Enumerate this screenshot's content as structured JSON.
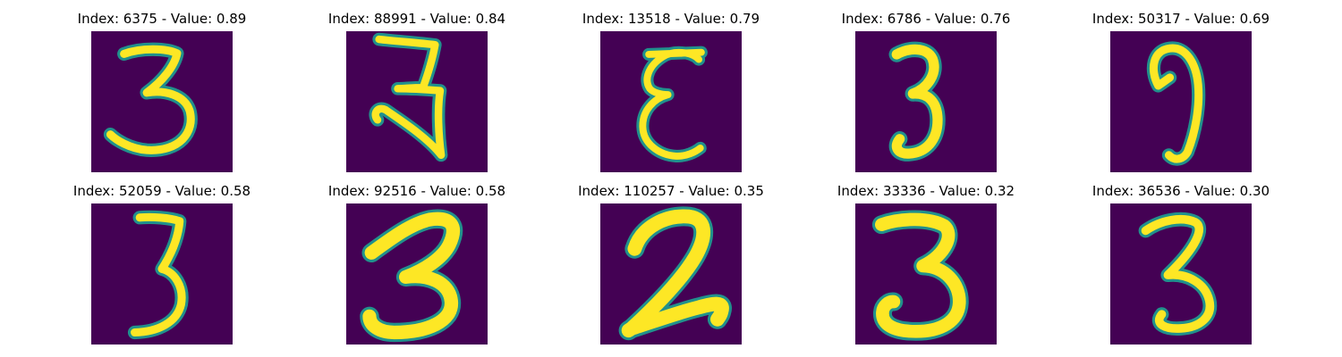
{
  "colors": {
    "background": "#440154",
    "mid": "#21918c",
    "high": "#fde725"
  },
  "images": [
    {
      "title": "Index: 6375 - Value: 0.89",
      "digit": "3"
    },
    {
      "title": "Index: 88991 - Value: 0.84",
      "digit": "3"
    },
    {
      "title": "Index: 13518 - Value: 0.79",
      "digit": "3"
    },
    {
      "title": "Index: 6786 - Value: 0.76",
      "digit": "3"
    },
    {
      "title": "Index: 50317 - Value: 0.69",
      "digit": "3"
    },
    {
      "title": "Index: 52059 - Value: 0.58",
      "digit": "3"
    },
    {
      "title": "Index: 92516 - Value: 0.58",
      "digit": "3"
    },
    {
      "title": "Index: 110257 - Value: 0.35",
      "digit": "2"
    },
    {
      "title": "Index: 33336 - Value: 0.32",
      "digit": "3"
    },
    {
      "title": "Index: 36536 - Value: 0.30",
      "digit": "3"
    }
  ]
}
